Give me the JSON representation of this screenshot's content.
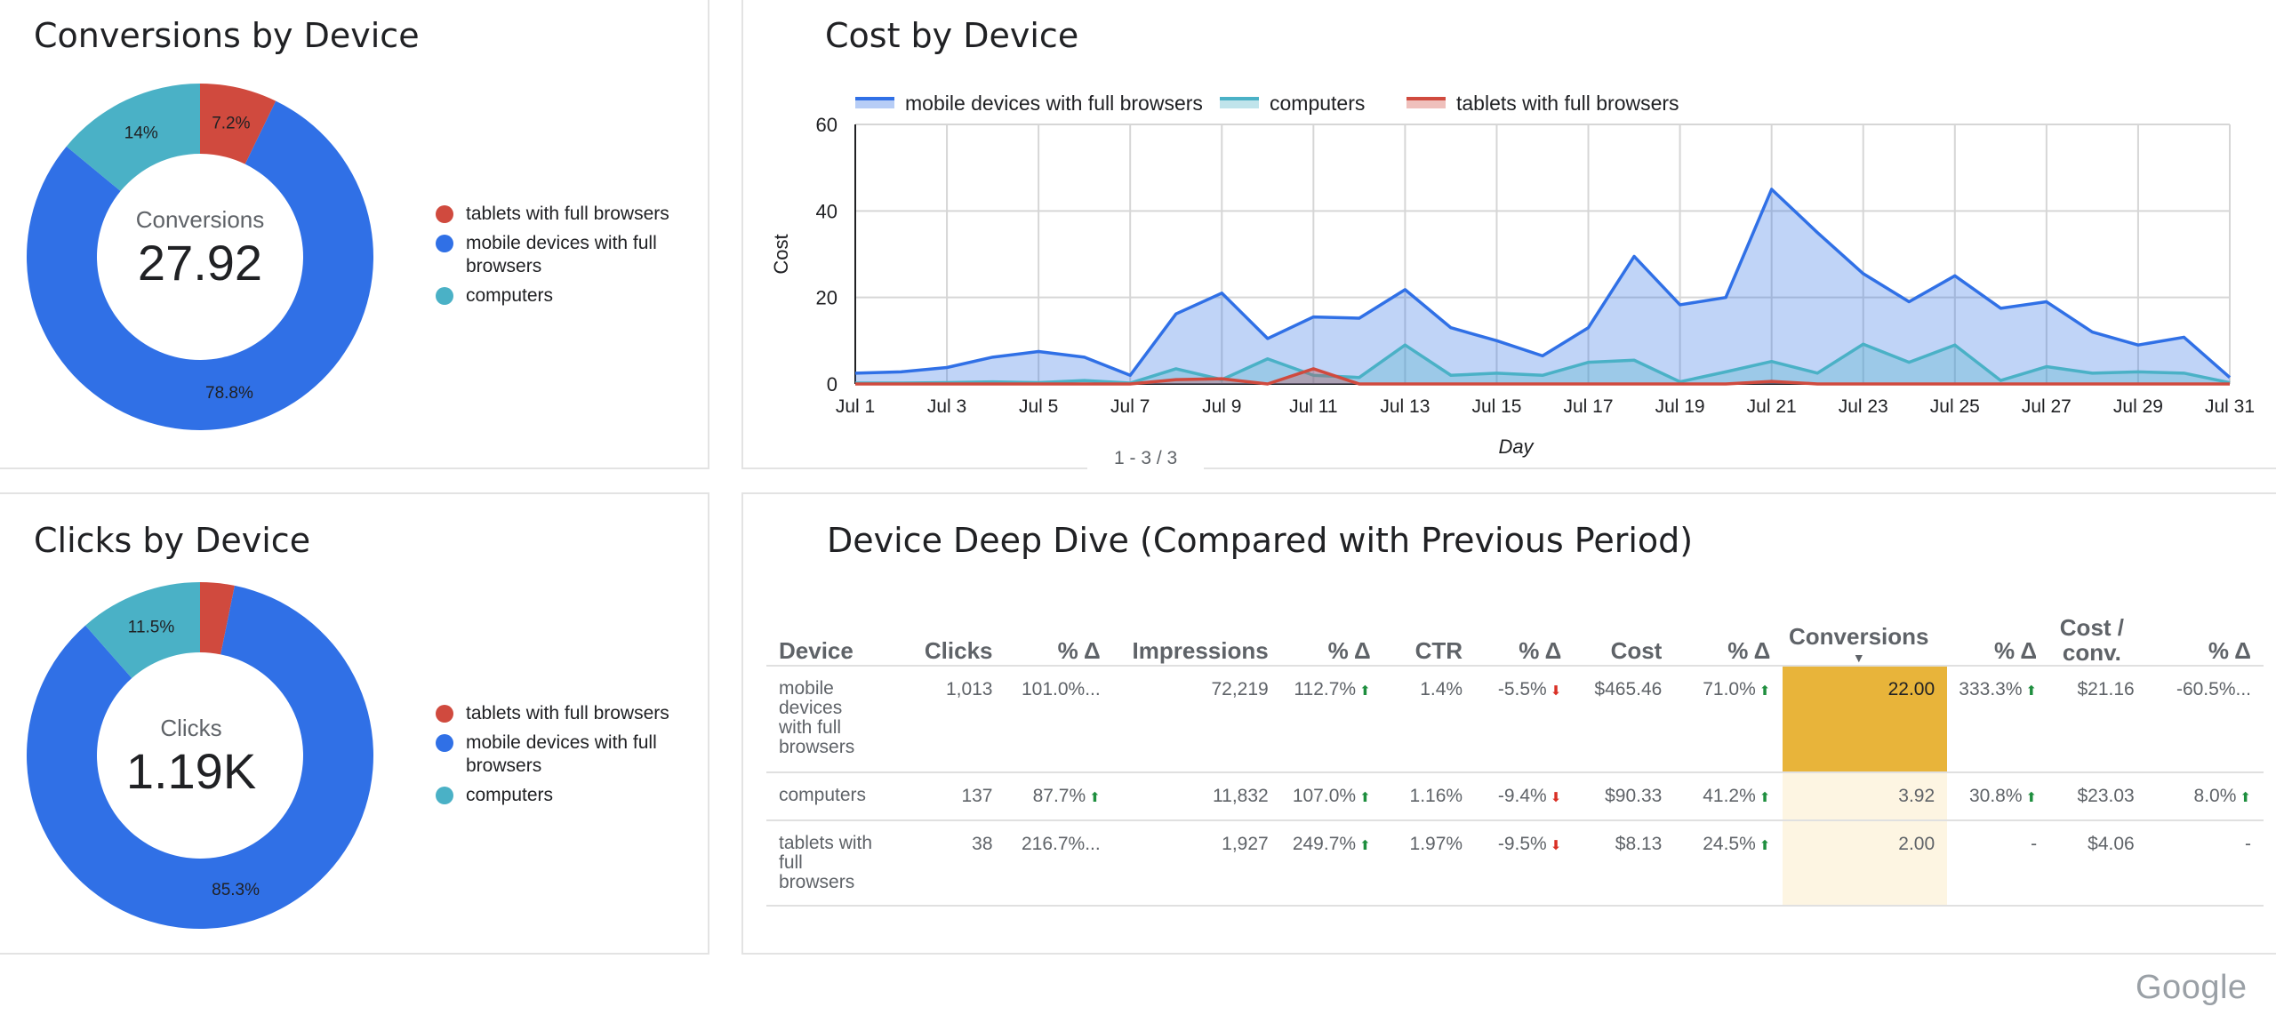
{
  "colors": {
    "tablets": "#d04a3e",
    "mobile": "#3070e6",
    "computers": "#4ab1c6",
    "highlight_strong": "#e8b43a",
    "highlight_light": "#fdf5e2"
  },
  "conversions_card": {
    "title": "Conversions by Device",
    "center_label": "Conversions",
    "center_value": "27.92",
    "slices": [
      {
        "name": "tablets with full browsers",
        "value": 7.2,
        "label": "7.2%",
        "color_key": "tablets"
      },
      {
        "name": "mobile devices with full browsers",
        "value": 78.8,
        "label": "78.8%",
        "color_key": "mobile"
      },
      {
        "name": "computers",
        "value": 14.0,
        "label": "14%",
        "color_key": "computers"
      }
    ],
    "legend": [
      {
        "label_lines": [
          "tablets with full browsers"
        ],
        "color_key": "tablets"
      },
      {
        "label_lines": [
          "mobile devices with full",
          "browsers"
        ],
        "color_key": "mobile"
      },
      {
        "label_lines": [
          "computers"
        ],
        "color_key": "computers"
      }
    ]
  },
  "clicks_card": {
    "title": "Clicks by Device",
    "center_label": "Clicks",
    "center_value": "1.19K",
    "slices": [
      {
        "name": "tablets with full browsers",
        "value": 3.2,
        "label": "",
        "color_key": "tablets"
      },
      {
        "name": "mobile devices with full browsers",
        "value": 85.3,
        "label": "85.3%",
        "color_key": "mobile"
      },
      {
        "name": "computers",
        "value": 11.5,
        "label": "11.5%",
        "color_key": "computers"
      }
    ],
    "legend": [
      {
        "label_lines": [
          "tablets with full browsers"
        ],
        "color_key": "tablets"
      },
      {
        "label_lines": [
          "mobile devices with full",
          "browsers"
        ],
        "color_key": "mobile"
      },
      {
        "label_lines": [
          "computers"
        ],
        "color_key": "computers"
      }
    ]
  },
  "cost_card": {
    "title": "Cost by Device",
    "pager": "1 - 3 / 3"
  },
  "chart_data": {
    "type": "area",
    "title": "Cost by Device",
    "xlabel": "Day",
    "ylabel": "Cost",
    "ylim": [
      0,
      60
    ],
    "yticks": [
      0,
      20,
      40,
      60
    ],
    "x": [
      "Jul 1",
      "Jul 2",
      "Jul 3",
      "Jul 4",
      "Jul 5",
      "Jul 6",
      "Jul 7",
      "Jul 8",
      "Jul 9",
      "Jul 10",
      "Jul 11",
      "Jul 12",
      "Jul 13",
      "Jul 14",
      "Jul 15",
      "Jul 16",
      "Jul 17",
      "Jul 18",
      "Jul 19",
      "Jul 20",
      "Jul 21",
      "Jul 22",
      "Jul 23",
      "Jul 24",
      "Jul 25",
      "Jul 26",
      "Jul 27",
      "Jul 28",
      "Jul 29",
      "Jul 30",
      "Jul 31"
    ],
    "xtick_labels": [
      "Jul 1",
      "Jul 3",
      "Jul 5",
      "Jul 7",
      "Jul 9",
      "Jul 11",
      "Jul 13",
      "Jul 15",
      "Jul 17",
      "Jul 19",
      "Jul 21",
      "Jul 23",
      "Jul 25",
      "Jul 27",
      "Jul 29",
      "Jul 31"
    ],
    "grid": true,
    "legend_position": "top",
    "series": [
      {
        "name": "mobile devices with full browsers",
        "color_key": "mobile",
        "values": [
          2.5,
          2.8,
          3.8,
          6.2,
          7.5,
          6.2,
          2.0,
          16.2,
          21.0,
          10.5,
          15.5,
          15.2,
          21.8,
          13.0,
          10.0,
          6.5,
          13.0,
          29.5,
          18.3,
          20.0,
          45.0,
          35.0,
          25.5,
          19.0,
          25.0,
          17.5,
          19.0,
          12.0,
          9.0,
          10.8,
          1.5
        ]
      },
      {
        "name": "computers",
        "color_key": "computers",
        "values": [
          0.2,
          0.2,
          0.3,
          0.5,
          0.3,
          0.8,
          0.2,
          3.5,
          1.0,
          5.8,
          2.0,
          1.5,
          9.0,
          2.0,
          2.5,
          2.0,
          5.0,
          5.5,
          0.5,
          2.8,
          5.2,
          2.5,
          9.2,
          5.0,
          9.0,
          0.8,
          4.0,
          2.5,
          2.8,
          2.5,
          0.3
        ]
      },
      {
        "name": "tablets with full browsers",
        "color_key": "tablets",
        "values": [
          0,
          0,
          0,
          0,
          0,
          0,
          0,
          1.0,
          1.2,
          0,
          3.5,
          0,
          0,
          0,
          0,
          0,
          0,
          0,
          0,
          0,
          0.6,
          0,
          0,
          0,
          0,
          0,
          0,
          0,
          0,
          0,
          0
        ]
      }
    ]
  },
  "deep_dive": {
    "title": "Device Deep Dive (Compared with Previous Period)",
    "columns": [
      {
        "label": "Device",
        "align": "left"
      },
      {
        "label": "Clicks"
      },
      {
        "label": "% Δ"
      },
      {
        "label": "Impressions"
      },
      {
        "label": "% Δ"
      },
      {
        "label": "CTR"
      },
      {
        "label": "% Δ"
      },
      {
        "label": "Cost"
      },
      {
        "label": "% Δ"
      },
      {
        "label": "Conversions",
        "sorted": true
      },
      {
        "label": "% Δ"
      },
      {
        "label": "Cost / conv."
      },
      {
        "label": "% Δ"
      }
    ],
    "rows": [
      {
        "device": "mobile devices with full browsers",
        "clicks": "1,013",
        "clicks_delta": "101.0%...",
        "clicks_dir": "",
        "impressions": "72,219",
        "impr_delta": "112.7%",
        "impr_dir": "up",
        "ctr": "1.4%",
        "ctr_delta": "-5.5%",
        "ctr_dir": "down",
        "cost": "$465.46",
        "cost_delta": "71.0%",
        "cost_dir": "up",
        "conversions": "22.00",
        "conv_delta": "333.3%",
        "conv_dir": "up",
        "cpc": "$21.16",
        "cpc_delta": "-60.5%...",
        "cpc_dir": "",
        "conv_shade": "strong"
      },
      {
        "device": "computers",
        "clicks": "137",
        "clicks_delta": "87.7%",
        "clicks_dir": "up",
        "impressions": "11,832",
        "impr_delta": "107.0%",
        "impr_dir": "up",
        "ctr": "1.16%",
        "ctr_delta": "-9.4%",
        "ctr_dir": "down",
        "cost": "$90.33",
        "cost_delta": "41.2%",
        "cost_dir": "up",
        "conversions": "3.92",
        "conv_delta": "30.8%",
        "conv_dir": "up",
        "cpc": "$23.03",
        "cpc_delta": "8.0%",
        "cpc_dir": "up",
        "conv_shade": "light"
      },
      {
        "device": "tablets with full browsers",
        "clicks": "38",
        "clicks_delta": "216.7%...",
        "clicks_dir": "",
        "impressions": "1,927",
        "impr_delta": "249.7%",
        "impr_dir": "up",
        "ctr": "1.97%",
        "ctr_delta": "-9.5%",
        "ctr_dir": "down",
        "cost": "$8.13",
        "cost_delta": "24.5%",
        "cost_dir": "up",
        "conversions": "2.00",
        "conv_delta": "-",
        "conv_dir": "",
        "cpc": "$4.06",
        "cpc_delta": "-",
        "cpc_dir": "",
        "conv_shade": "light"
      }
    ]
  },
  "footer": {
    "logo": "Google"
  }
}
